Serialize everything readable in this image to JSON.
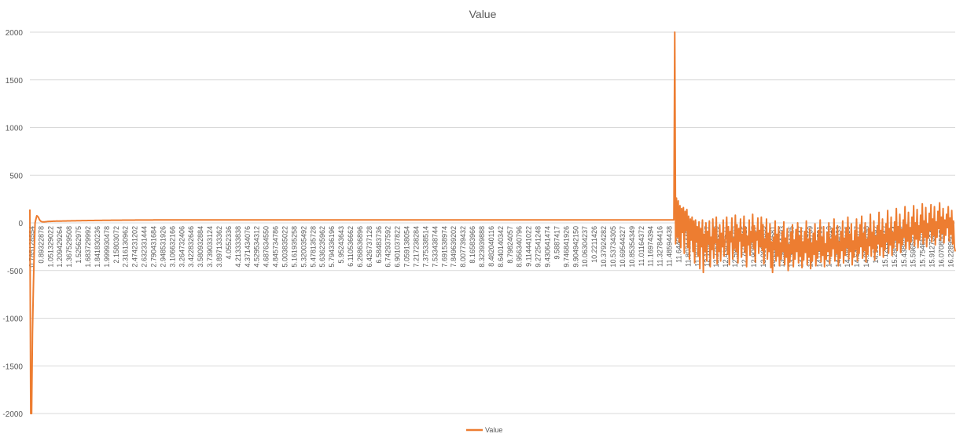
{
  "chart_data": {
    "type": "line",
    "title": "Value",
    "xlabel": "",
    "ylabel": "",
    "ylim": [
      -2000,
      2000
    ],
    "y_ticks": [
      2000,
      1500,
      1000,
      500,
      0,
      -500,
      -1000,
      -1500,
      -2000
    ],
    "grid": true,
    "legend_position": "bottom",
    "x_tick_labels": [
      "0.785128554",
      "0.89322878",
      "1.051329022",
      "1.209429264",
      "1.367529508",
      "1.52562975",
      "1.683729992",
      "1.841830236",
      "1.999930478",
      "2.15803072",
      "2.316130962",
      "2.474231202",
      "2.632331444",
      "2.790431684",
      "2.948531926",
      "3.106632166",
      "3.264732406",
      "3.422832646",
      "3.580932884",
      "3.739033124",
      "3.897133362",
      "4.0552336",
      "4.213333838",
      "4.371434076",
      "4.529534312",
      "4.687634550",
      "4.845734786",
      "5.003835022",
      "5.161935258",
      "5.320035492",
      "5.478135728",
      "5.636235962",
      "5.794336196",
      "5.95243643",
      "6.110536662",
      "6.268636896",
      "6.426737128",
      "6.58483736",
      "6.742937592",
      "6.901037822",
      "7.059138054",
      "7.217238284",
      "7.375338514",
      "7.533438744",
      "7.691538974",
      "7.849639202",
      "8.007739432",
      "8.16583966",
      "8.323939888",
      "8.482040116",
      "8.640140342",
      "8.79824057",
      "8.956340796",
      "9.114441022",
      "9.272541248",
      "9.430641474",
      "9.5887417",
      "9.746841926",
      "9.904942150",
      "10.06304237",
      "10.2211426",
      "10.37924282",
      "10.53734305",
      "10.69544327",
      "10.85354349",
      "11.01164372",
      "11.16974394",
      "11.32784416",
      "11.48594438",
      "11.6440446",
      "11.80214482",
      "11.96024504",
      "12.11834527",
      "12.27644549",
      "12.43454571",
      "12.59264593",
      "12.75074615",
      "12.90884637",
      "13.06694659",
      "13.22504681",
      "13.38314703",
      "13.54124725",
      "13.69934747",
      "13.85744769",
      "14.01554791",
      "14.17364813",
      "14.33174833",
      "14.48984855",
      "14.64794877",
      "14.80604898",
      "14.9641492",
      "15.12224942",
      "15.28034964",
      "15.43844985",
      "15.59655006",
      "15.75465028",
      "15.91275049",
      "16.07085071",
      "16.22895092"
    ],
    "series": [
      {
        "name": "Value",
        "color": "#ED7D31",
        "values": [
          140,
          -2000,
          -2000,
          -1150,
          -700,
          -300,
          0,
          40,
          75,
          68,
          55,
          35,
          22,
          15,
          12,
          10,
          10,
          10,
          12,
          12,
          14,
          14,
          15,
          15,
          15,
          16,
          16,
          17,
          17,
          17,
          18,
          18,
          18,
          18,
          19,
          19,
          19,
          19,
          20,
          20,
          20,
          20,
          20,
          21,
          21,
          21,
          21,
          21,
          22,
          22,
          22,
          22,
          22,
          22,
          23,
          23,
          23,
          23,
          23,
          23,
          24,
          24,
          24,
          24,
          24,
          24,
          24,
          25,
          25,
          25,
          25,
          25,
          25,
          25,
          25,
          26,
          26,
          26,
          26,
          26,
          26,
          26,
          26,
          26,
          27,
          27,
          27,
          27,
          27,
          27,
          27,
          27,
          27,
          27,
          28,
          28,
          28,
          28,
          28,
          28,
          28,
          28,
          28,
          28,
          28,
          28,
          28,
          29,
          29,
          29,
          29,
          29,
          29,
          29,
          29,
          29,
          29,
          29,
          29,
          29,
          29,
          29,
          30,
          30,
          30,
          30,
          30,
          30,
          30,
          30,
          30,
          30,
          30,
          30,
          30,
          30,
          30,
          30,
          30,
          30,
          30,
          30,
          30,
          31,
          31,
          31,
          31,
          31,
          31,
          31,
          31,
          31,
          31,
          31,
          31,
          31,
          31,
          31,
          31,
          31,
          31,
          31,
          31,
          31,
          31,
          31,
          31,
          31,
          31,
          31,
          31,
          31,
          31,
          31,
          31,
          31,
          31,
          31,
          31,
          31,
          31,
          31,
          31,
          31,
          31,
          31,
          31,
          31,
          31,
          31,
          31,
          31,
          31,
          31,
          31,
          31,
          31,
          31,
          31,
          31,
          31,
          31,
          31,
          31,
          31,
          31,
          31,
          31,
          31,
          31,
          31,
          31,
          31,
          31,
          31,
          31,
          31,
          31,
          31,
          31,
          31,
          31,
          31,
          31,
          31,
          31,
          31,
          31,
          31,
          31,
          31,
          31,
          31,
          31,
          31,
          31,
          31,
          31,
          31,
          31,
          31,
          31,
          31,
          31,
          31,
          31,
          31,
          31,
          31,
          31,
          31,
          31,
          31,
          31,
          31,
          31,
          31,
          31,
          31,
          31,
          31,
          31,
          31,
          31,
          31,
          31,
          31,
          31,
          31,
          31,
          31,
          31,
          31,
          31,
          31,
          31,
          31,
          31,
          31,
          31,
          31,
          31,
          31,
          31,
          31,
          31,
          31,
          31,
          31,
          31,
          31,
          31,
          31,
          31,
          31,
          31,
          31,
          31,
          31,
          31,
          31,
          31,
          31,
          31,
          31,
          31,
          31,
          31,
          31,
          31,
          31,
          31,
          31,
          31,
          31,
          31,
          31,
          31,
          31,
          31,
          31,
          31,
          31,
          31,
          31,
          31,
          31,
          31,
          31,
          31,
          31,
          31,
          31,
          31,
          31,
          31,
          31,
          31,
          31,
          31,
          31,
          31,
          31,
          31,
          31,
          31,
          31,
          31,
          31,
          31,
          31,
          31,
          31,
          31,
          31,
          31,
          31,
          31,
          31,
          31,
          31,
          31,
          31,
          31,
          31,
          31,
          31,
          31,
          31,
          31,
          31,
          31,
          31,
          31,
          31,
          31,
          31,
          31,
          31,
          31,
          31,
          31,
          31,
          31,
          31,
          31,
          31,
          31,
          31,
          31,
          31,
          31,
          31,
          31,
          31,
          31,
          31,
          31,
          31,
          31,
          31,
          31,
          31,
          31,
          31,
          31,
          31,
          31,
          31,
          31,
          31,
          31,
          31,
          31,
          31,
          31,
          31,
          31,
          31,
          31,
          31,
          31,
          31,
          31,
          31,
          31,
          31,
          31,
          31,
          31,
          31,
          31,
          31,
          31,
          31,
          31,
          31,
          31,
          31,
          31,
          31,
          31,
          31,
          31,
          31,
          31,
          31,
          31,
          31,
          31,
          31,
          31,
          31,
          31,
          31,
          31,
          31,
          31,
          31,
          31,
          31,
          31,
          31,
          31,
          31,
          31,
          31,
          31,
          31,
          31,
          31,
          31,
          31,
          31,
          31,
          31,
          31,
          31,
          31,
          31,
          31,
          31,
          31,
          31,
          31,
          31,
          31,
          31,
          31,
          31,
          31,
          31,
          31,
          31,
          31,
          31,
          31,
          31,
          31,
          31,
          31,
          31,
          31,
          31,
          31,
          31,
          31,
          31,
          31,
          31,
          31,
          31,
          31,
          31,
          31,
          31,
          31,
          31,
          31,
          31,
          31,
          31,
          31,
          31,
          31,
          31,
          31,
          31,
          31,
          31,
          31,
          31,
          31,
          31,
          31,
          31,
          31,
          31,
          31,
          31,
          31,
          31,
          31,
          31,
          31,
          31,
          31,
          31,
          31,
          31,
          31,
          31,
          31,
          31,
          31,
          31,
          31,
          31,
          31,
          31,
          31,
          31,
          31,
          31,
          31,
          31,
          31,
          31,
          31,
          31,
          31,
          31,
          31,
          31,
          31,
          31,
          31,
          31,
          31,
          31,
          31,
          31,
          31,
          31,
          31,
          31,
          31,
          31,
          31,
          31,
          31,
          31,
          31,
          31,
          31,
          31,
          31,
          31,
          31,
          31,
          31,
          31,
          31,
          31,
          31,
          31,
          31,
          31,
          31,
          31,
          31,
          31,
          31,
          31,
          31,
          31,
          31,
          31,
          31,
          31,
          31,
          31,
          31,
          31,
          31,
          31,
          31,
          31,
          31,
          31,
          31,
          31,
          31,
          31,
          31,
          31,
          31,
          31,
          31,
          31,
          31,
          31,
          31,
          31,
          31,
          31,
          31,
          31,
          31,
          31,
          31,
          31,
          31,
          31,
          31,
          31,
          31,
          31,
          31,
          31,
          31,
          31,
          31,
          31,
          31,
          31,
          31,
          31,
          31,
          31,
          31,
          31,
          31,
          31,
          31,
          31,
          31,
          31,
          31,
          31,
          31,
          31,
          31,
          31,
          31,
          31,
          31,
          31,
          31,
          31,
          31,
          31,
          31,
          31,
          31,
          31,
          31,
          31,
          31,
          31,
          31,
          31,
          31,
          31,
          31,
          31,
          31,
          31,
          31,
          31,
          31,
          31,
          31,
          31,
          31,
          31,
          31,
          31,
          31,
          31,
          31,
          31,
          31,
          31,
          31,
          31,
          31,
          31,
          31,
          31,
          31,
          31,
          31,
          31,
          31,
          31,
          31,
          31,
          31,
          31,
          31,
          31,
          31,
          31,
          31,
          2000,
          -220,
          260,
          -150,
          230,
          -200,
          180,
          -260,
          150,
          -100,
          160,
          -320,
          120,
          -80,
          140,
          -260,
          70,
          -380,
          40,
          -180,
          60,
          -300,
          20,
          -420,
          30,
          -200,
          -40,
          -350,
          10,
          -480,
          -60,
          -250,
          30,
          -520,
          -120,
          -300,
          0,
          -400,
          -90,
          -220,
          20,
          -460,
          -150,
          -280,
          40,
          -370,
          -60,
          -210,
          60,
          -430,
          -180,
          -300,
          -20,
          -400,
          -110,
          -250,
          30,
          -350,
          -200,
          -150,
          60,
          -330,
          -40,
          -440,
          -90,
          -200,
          50,
          -380,
          -160,
          -270,
          80,
          -300,
          -20,
          -420,
          -60,
          -190,
          40,
          -360,
          -120,
          -240,
          70,
          -310,
          -50,
          -460,
          -140,
          -230,
          30,
          -340,
          -90,
          -200,
          90,
          -270,
          -30,
          -410,
          -100,
          -180,
          50,
          -320,
          -80,
          -250,
          60,
          -290,
          -20,
          -430,
          -170,
          -260,
          40,
          -380,
          -110,
          -300,
          -10,
          -470,
          -200,
          -520,
          -150,
          -280,
          20,
          -400,
          -120,
          -350,
          -40,
          -450,
          -210,
          -380,
          -90,
          -300,
          10,
          -440,
          -160,
          -360,
          -60,
          -500,
          -230,
          -410,
          -100,
          -320,
          -20,
          -460,
          -180,
          -380,
          -70,
          -300,
          0,
          -420,
          -140,
          -350,
          -50,
          -470,
          -200,
          -390,
          -90,
          -310,
          20,
          -440,
          -170,
          -360,
          -60,
          -480,
          -210,
          -400,
          -110,
          -330,
          -10,
          -450,
          -190,
          -370,
          -80,
          -290,
          30,
          -410,
          -150,
          -340,
          -40,
          -460,
          -220,
          -380,
          -100,
          -300,
          0,
          -430,
          -170,
          -350,
          -60,
          -270,
          40,
          -400,
          -140,
          -320,
          -30,
          -450,
          -200,
          -370,
          -90,
          -290,
          20,
          -420,
          -160,
          -340,
          -50,
          -260,
          60,
          -380,
          -120,
          -300,
          -10,
          -440,
          -190,
          -360,
          -80,
          -280,
          40,
          -400,
          -150,
          -320,
          -20,
          -250,
          70,
          -370,
          -110,
          -290,
          0,
          -410,
          -170,
          -330,
          -60,
          -240,
          90,
          -350,
          -100,
          -270,
          20,
          -390,
          -140,
          -300,
          -30,
          -220,
          110,
          -340,
          -80,
          -250,
          40,
          -360,
          -120,
          -280,
          -10,
          -200,
          130,
          -320,
          -60,
          -230,
          60,
          -340,
          -100,
          -260,
          10,
          -180,
          150,
          -290,
          -40,
          -210,
          90,
          -310,
          -70,
          -230,
          30,
          -150,
          170,
          -270,
          -20,
          -190,
          110,
          -280,
          -50,
          -200,
          60,
          -120,
          180,
          -240,
          0,
          -170,
          140,
          -260,
          -30,
          -180,
          80,
          -100,
          200,
          -220,
          20,
          -150,
          160,
          -250,
          -10,
          -160,
          100,
          -80,
          190,
          -200,
          40,
          -130,
          170,
          -230,
          10,
          -150,
          120,
          -60,
          210,
          -180,
          60,
          -110,
          150,
          -210,
          30,
          -130,
          90,
          -50,
          170,
          -190,
          50,
          -120,
          130,
          -220,
          20,
          -250,
          -300
        ]
      }
    ]
  }
}
